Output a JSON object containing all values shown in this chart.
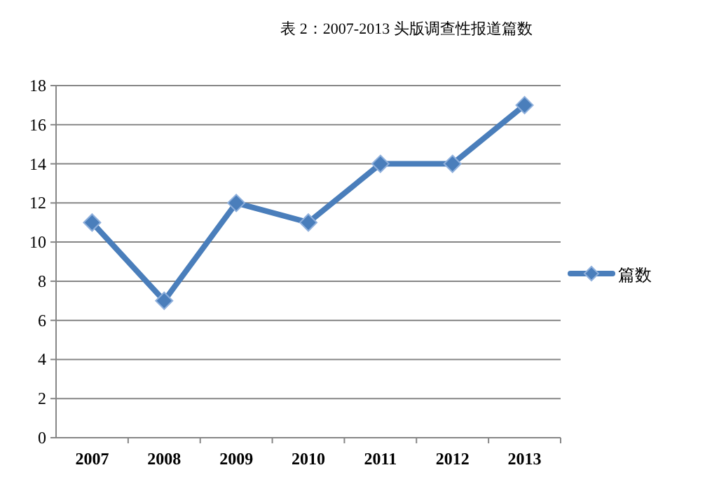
{
  "chart_data": {
    "type": "line",
    "title": "表 2：2007-2013 头版调查性报道篇数",
    "categories": [
      "2007",
      "2008",
      "2009",
      "2010",
      "2011",
      "2012",
      "2013"
    ],
    "series": [
      {
        "name": "篇数",
        "color": "#4a7ebb",
        "values": [
          11,
          7,
          12,
          11,
          14,
          14,
          17
        ]
      }
    ],
    "ylim": [
      0,
      18
    ],
    "yticks": [
      0,
      2,
      4,
      6,
      8,
      10,
      12,
      14,
      16,
      18
    ],
    "grid": "y",
    "legend": "right",
    "marker": "diamond",
    "line_style": "solid"
  }
}
